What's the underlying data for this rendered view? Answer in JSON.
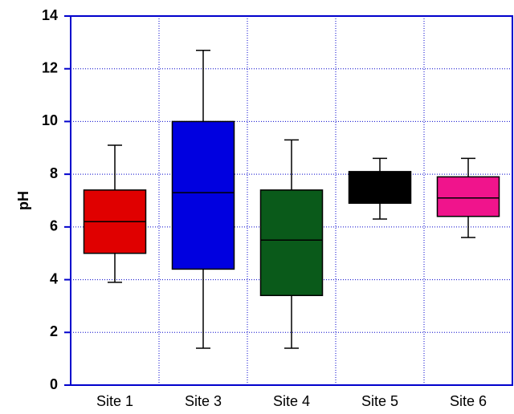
{
  "chart_data": {
    "type": "box",
    "y_label": "pH",
    "categories": [
      "Site 1",
      "Site 3",
      "Site 4",
      "Site 5",
      "Site 6"
    ],
    "min": [
      3.9,
      1.4,
      1.4,
      6.3,
      5.6
    ],
    "q1": [
      5.0,
      4.4,
      3.4,
      6.9,
      6.4
    ],
    "median": [
      6.2,
      7.3,
      5.5,
      null,
      7.1
    ],
    "q3": [
      7.4,
      10.0,
      7.4,
      8.1,
      7.9
    ],
    "max": [
      9.1,
      12.7,
      9.3,
      8.6,
      8.6
    ],
    "colors": [
      "#e00000",
      "#0000e0",
      "#0a5a1a",
      "#000000",
      "#f0148c"
    ],
    "ylim": [
      0,
      14
    ],
    "yticks": [
      0,
      2,
      4,
      6,
      8,
      10,
      12,
      14
    ],
    "grid": true
  }
}
